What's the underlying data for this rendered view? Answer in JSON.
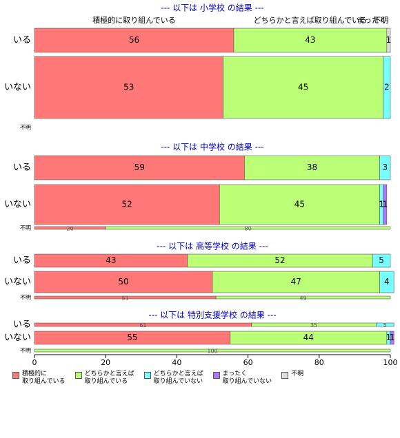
{
  "chart_data": {
    "type": "bar",
    "orientation": "horizontal",
    "stacked": true,
    "xlim": [
      0,
      100
    ],
    "xticks": [
      0,
      20,
      40,
      60,
      80,
      100
    ],
    "series": [
      {
        "name": "積極的に\n取り組んでいる",
        "color": "#ff7777"
      },
      {
        "name": "どちらかと言えば\n取り組んでいる",
        "color": "#bbff77"
      },
      {
        "name": "どちらかと言えば\n取り組んでいない",
        "color": "#77ffff"
      },
      {
        "name": "まったく\n取り組んでいない",
        "color": "#aa77ff"
      },
      {
        "name": "不明",
        "color": "#dddddd"
      }
    ],
    "column_labels": [
      "積極的に取り組んでいる",
      "どちらかと言えば取り組んでいる",
      "まったく",
      "不明"
    ],
    "panels": [
      {
        "title": "--- 以下は 小学校 の結果 ---",
        "rows": [
          {
            "label": "いる",
            "values": [
              56,
              43,
              0,
              0,
              1
            ]
          },
          {
            "label": "いない",
            "values": [
              53,
              45,
              2,
              0,
              0
            ]
          },
          {
            "label": "不明"
          }
        ]
      },
      {
        "title": "--- 以下は 中学校 の結果 ---",
        "rows": [
          {
            "label": "いる",
            "values": [
              59,
              38,
              3,
              0,
              0
            ]
          },
          {
            "label": "いない",
            "values": [
              52,
              45,
              1,
              1,
              0
            ]
          },
          {
            "label": "不明",
            "values": [
              20,
              80,
              0,
              0,
              0
            ]
          }
        ]
      },
      {
        "title": "--- 以下は 高等学校 の結果 ---",
        "rows": [
          {
            "label": "いる",
            "values": [
              43,
              52,
              5,
              0,
              0
            ]
          },
          {
            "label": "いない",
            "values": [
              50,
              47,
              4,
              0,
              0
            ]
          },
          {
            "label": "不明",
            "values": [
              51,
              49,
              0,
              0,
              0
            ]
          }
        ]
      },
      {
        "title": "--- 以下は 特別支援学校 の結果 ---",
        "rows": [
          {
            "label": "いる",
            "values": [
              61,
              35,
              5,
              0,
              0
            ]
          },
          {
            "label": "いない",
            "values": [
              55,
              44,
              1,
              1,
              0
            ]
          },
          {
            "label": "不明",
            "values": [
              0,
              100,
              0,
              0,
              0
            ]
          }
        ]
      }
    ]
  }
}
